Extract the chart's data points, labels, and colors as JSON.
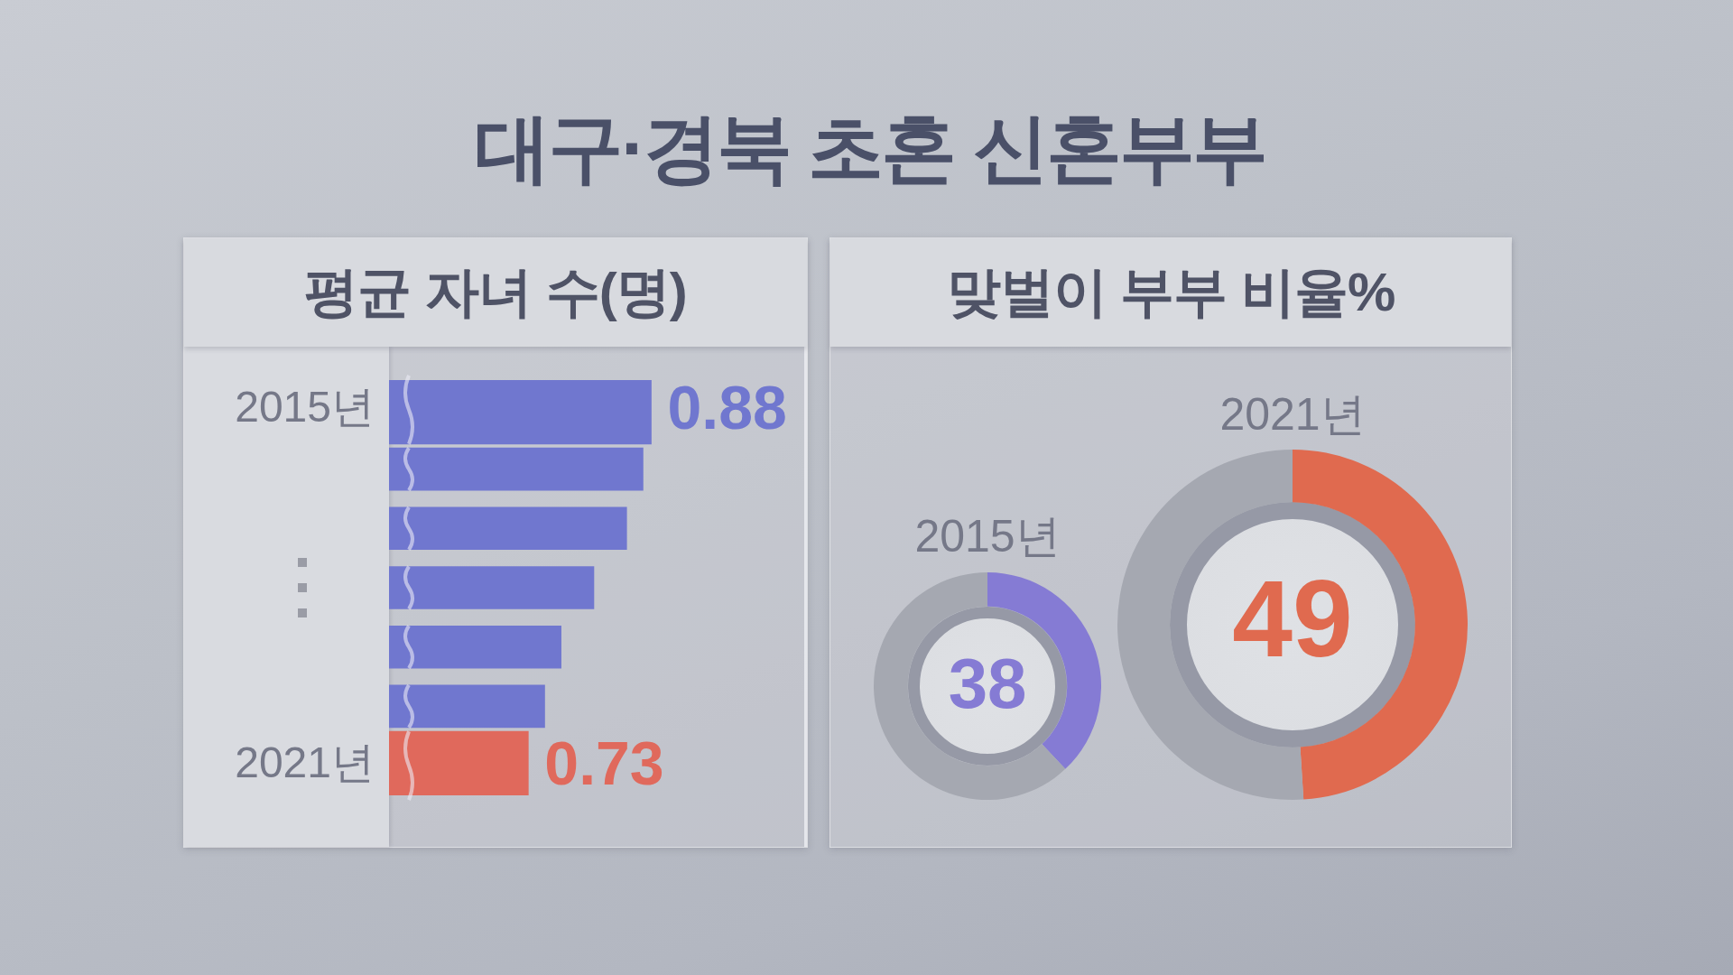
{
  "chart_data": [
    {
      "type": "other",
      "title": "대구·경북 초혼 신혼부부"
    },
    {
      "type": "bar",
      "orientation": "horizontal",
      "title": "평균 자녀 수(명)",
      "categories": [
        "2015년",
        null,
        null,
        null,
        null,
        null,
        "2021년"
      ],
      "values": [
        0.88,
        0.87,
        0.85,
        0.81,
        0.77,
        0.75,
        0.73
      ],
      "colors": [
        "#7077cf",
        "#7077cf",
        "#7077cf",
        "#7077cf",
        "#7077cf",
        "#7077cf",
        "#e0695c"
      ],
      "value_labels": [
        "0.88",
        null,
        null,
        null,
        null,
        null,
        "0.73"
      ],
      "xlim": [
        0.56,
        1.07
      ],
      "tick_labels": "y"
    },
    {
      "type": "other",
      "title": "맞벌이 부부 비율%"
    },
    {
      "type": "donut",
      "title": "2015년",
      "categories": [
        null,
        null
      ],
      "values": [
        38,
        62
      ],
      "colors": [
        "#857bd4",
        "#a5a8b1"
      ],
      "value_labels": [
        "38",
        null
      ]
    },
    {
      "type": "donut",
      "title": "2021년",
      "categories": [
        null,
        null
      ],
      "values": [
        49,
        51
      ],
      "colors": [
        "#e06a4f",
        "#a5a8b1"
      ],
      "value_labels": [
        "49",
        null
      ]
    }
  ]
}
